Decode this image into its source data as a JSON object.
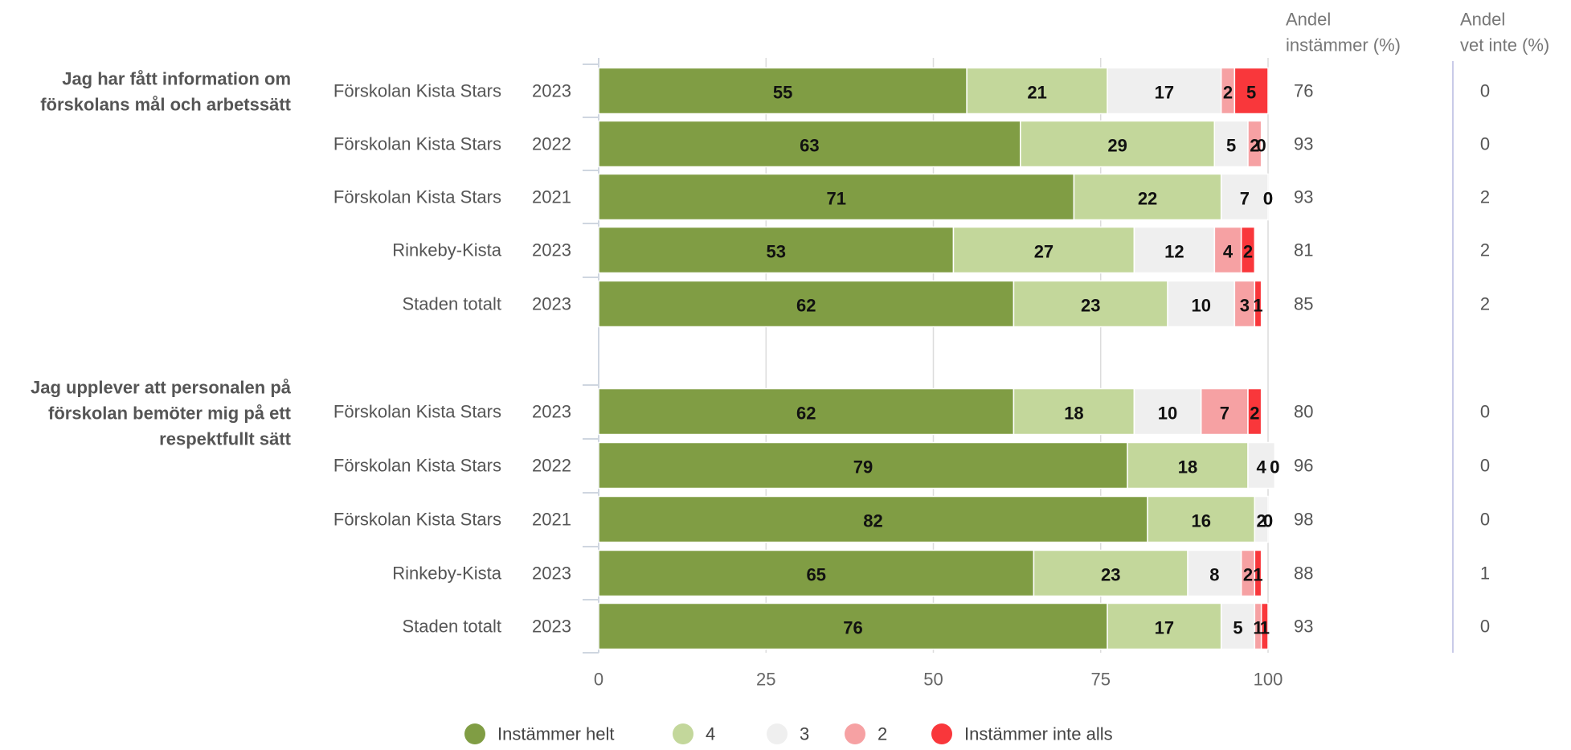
{
  "chart_data": {
    "type": "bar",
    "stacked": true,
    "orientation": "horizontal",
    "xlim": [
      0,
      100
    ],
    "xticks": [
      "0",
      "25",
      "50",
      "75",
      "100"
    ],
    "grid": true,
    "legend_position": "bottom",
    "column_headers": {
      "andel_instammer": [
        "Andel",
        "instämmer (%)"
      ],
      "andel_vet_inte": [
        "Andel",
        "vet inte (%)"
      ]
    },
    "series": [
      {
        "name": "Instämmer helt",
        "color": "#809d44"
      },
      {
        "name": "4",
        "color": "#c3d79b"
      },
      {
        "name": "3",
        "color": "#efefef"
      },
      {
        "name": "2",
        "color": "#f6a1a3"
      },
      {
        "name": "Instämmer inte alls",
        "color": "#f9373b"
      }
    ],
    "groups": [
      {
        "question": [
          "Jag har fått information om",
          "förskolans mål och arbetssätt"
        ],
        "rows": [
          {
            "unit": "Förskolan Kista Stars",
            "year": "2023",
            "values": [
              55,
              21,
              17,
              2,
              5
            ],
            "andel": "76",
            "vet_inte": "0"
          },
          {
            "unit": "Förskolan Kista Stars",
            "year": "2022",
            "values": [
              63,
              29,
              5,
              2,
              0
            ],
            "andel": "93",
            "vet_inte": "0"
          },
          {
            "unit": "Förskolan Kista Stars",
            "year": "2021",
            "values": [
              71,
              22,
              7,
              0,
              0
            ],
            "andel": "93",
            "vet_inte": "2"
          },
          {
            "unit": "Rinkeby-Kista",
            "year": "2023",
            "values": [
              53,
              27,
              12,
              4,
              2
            ],
            "andel": "81",
            "vet_inte": "2"
          },
          {
            "unit": "Staden totalt",
            "year": "2023",
            "values": [
              62,
              23,
              10,
              3,
              1
            ],
            "andel": "85",
            "vet_inte": "2"
          }
        ]
      },
      {
        "question": [
          "Jag upplever att personalen på",
          "förskolan bemöter mig på ett",
          "respektfullt sätt"
        ],
        "rows": [
          {
            "unit": "Förskolan Kista Stars",
            "year": "2023",
            "values": [
              62,
              18,
              10,
              7,
              2
            ],
            "andel": "80",
            "vet_inte": "0"
          },
          {
            "unit": "Förskolan Kista Stars",
            "year": "2022",
            "values": [
              79,
              18,
              4,
              0,
              0
            ],
            "andel": "96",
            "vet_inte": "0"
          },
          {
            "unit": "Förskolan Kista Stars",
            "year": "2021",
            "values": [
              82,
              16,
              2,
              0,
              0
            ],
            "andel": "98",
            "vet_inte": "0"
          },
          {
            "unit": "Rinkeby-Kista",
            "year": "2023",
            "values": [
              65,
              23,
              8,
              2,
              1
            ],
            "andel": "88",
            "vet_inte": "1"
          },
          {
            "unit": "Staden totalt",
            "year": "2023",
            "values": [
              76,
              17,
              5,
              1,
              1
            ],
            "andel": "93",
            "vet_inte": "0"
          }
        ]
      }
    ]
  }
}
